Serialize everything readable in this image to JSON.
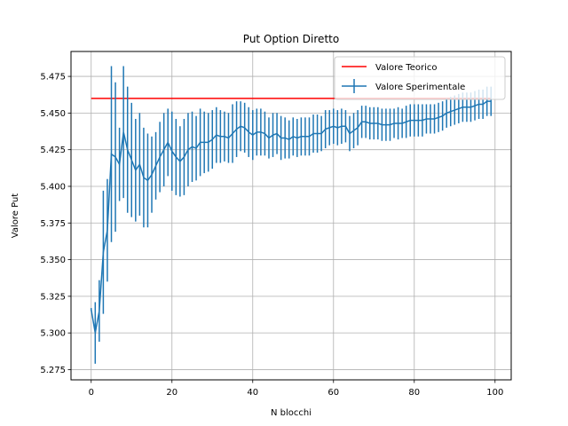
{
  "chart_data": {
    "type": "line",
    "title": "Put Option Diretto",
    "xlabel": "N blocchi",
    "ylabel": "Valore Put",
    "xlim": [
      -5,
      104
    ],
    "ylim": [
      5.268,
      5.492
    ],
    "x_ticks": [
      0,
      20,
      40,
      60,
      80,
      100
    ],
    "y_ticks": [
      5.275,
      5.3,
      5.325,
      5.35,
      5.375,
      5.4,
      5.425,
      5.45,
      5.475
    ],
    "x_tick_labels": [
      "0",
      "20",
      "40",
      "60",
      "80",
      "100"
    ],
    "y_tick_labels": [
      "5.275",
      "5.300",
      "5.325",
      "5.350",
      "5.375",
      "5.400",
      "5.425",
      "5.450",
      "5.475"
    ],
    "grid": true,
    "legend_position": "top-right",
    "theory": {
      "name": "Valore Teorico",
      "value": 5.46,
      "x_range": [
        0,
        99
      ],
      "color": "#ff0000"
    },
    "series": [
      {
        "name": "Valore Sperimentale",
        "color": "#1f77b4",
        "x": [
          0,
          1,
          2,
          3,
          4,
          5,
          6,
          7,
          8,
          9,
          10,
          11,
          12,
          13,
          14,
          15,
          16,
          17,
          18,
          19,
          20,
          21,
          22,
          23,
          24,
          25,
          26,
          27,
          28,
          29,
          30,
          31,
          32,
          33,
          34,
          35,
          36,
          37,
          38,
          39,
          40,
          41,
          42,
          43,
          44,
          45,
          46,
          47,
          48,
          49,
          50,
          51,
          52,
          53,
          54,
          55,
          56,
          57,
          58,
          59,
          60,
          61,
          62,
          63,
          64,
          65,
          66,
          67,
          68,
          69,
          70,
          71,
          72,
          73,
          74,
          75,
          76,
          77,
          78,
          79,
          80,
          81,
          82,
          83,
          84,
          85,
          86,
          87,
          88,
          89,
          90,
          91,
          92,
          93,
          94,
          95,
          96,
          97,
          98,
          99
        ],
        "y": [
          5.316,
          5.3,
          5.315,
          5.355,
          5.37,
          5.422,
          5.42,
          5.415,
          5.437,
          5.425,
          5.418,
          5.411,
          5.415,
          5.406,
          5.404,
          5.408,
          5.414,
          5.42,
          5.425,
          5.43,
          5.424,
          5.42,
          5.417,
          5.42,
          5.425,
          5.427,
          5.426,
          5.43,
          5.43,
          5.43,
          5.432,
          5.435,
          5.434,
          5.434,
          5.433,
          5.436,
          5.439,
          5.441,
          5.44,
          5.437,
          5.435,
          5.437,
          5.437,
          5.436,
          5.433,
          5.435,
          5.436,
          5.433,
          5.433,
          5.432,
          5.434,
          5.433,
          5.434,
          5.434,
          5.434,
          5.436,
          5.436,
          5.436,
          5.439,
          5.44,
          5.441,
          5.44,
          5.441,
          5.441,
          5.436,
          5.438,
          5.44,
          5.444,
          5.444,
          5.443,
          5.443,
          5.443,
          5.442,
          5.442,
          5.442,
          5.443,
          5.443,
          5.443,
          5.444,
          5.445,
          5.445,
          5.445,
          5.445,
          5.446,
          5.446,
          5.446,
          5.447,
          5.448,
          5.45,
          5.451,
          5.452,
          5.453,
          5.454,
          5.454,
          5.454,
          5.455,
          5.456,
          5.456,
          5.458,
          5.458
        ],
        "err": [
          0.001,
          0.021,
          0.021,
          0.042,
          0.035,
          0.06,
          0.051,
          0.025,
          0.045,
          0.043,
          0.039,
          0.035,
          0.035,
          0.034,
          0.032,
          0.026,
          0.023,
          0.024,
          0.025,
          0.023,
          0.027,
          0.026,
          0.024,
          0.026,
          0.025,
          0.024,
          0.022,
          0.023,
          0.021,
          0.02,
          0.02,
          0.019,
          0.018,
          0.017,
          0.017,
          0.02,
          0.019,
          0.017,
          0.017,
          0.017,
          0.017,
          0.016,
          0.016,
          0.015,
          0.014,
          0.015,
          0.014,
          0.015,
          0.014,
          0.013,
          0.013,
          0.013,
          0.013,
          0.013,
          0.013,
          0.013,
          0.013,
          0.012,
          0.013,
          0.012,
          0.012,
          0.012,
          0.012,
          0.011,
          0.012,
          0.012,
          0.012,
          0.011,
          0.011,
          0.011,
          0.011,
          0.011,
          0.011,
          0.011,
          0.011,
          0.01,
          0.011,
          0.01,
          0.011,
          0.011,
          0.011,
          0.011,
          0.011,
          0.01,
          0.01,
          0.01,
          0.01,
          0.01,
          0.01,
          0.01,
          0.01,
          0.01,
          0.01,
          0.01,
          0.01,
          0.01,
          0.01,
          0.01,
          0.01,
          0.01
        ]
      }
    ]
  }
}
